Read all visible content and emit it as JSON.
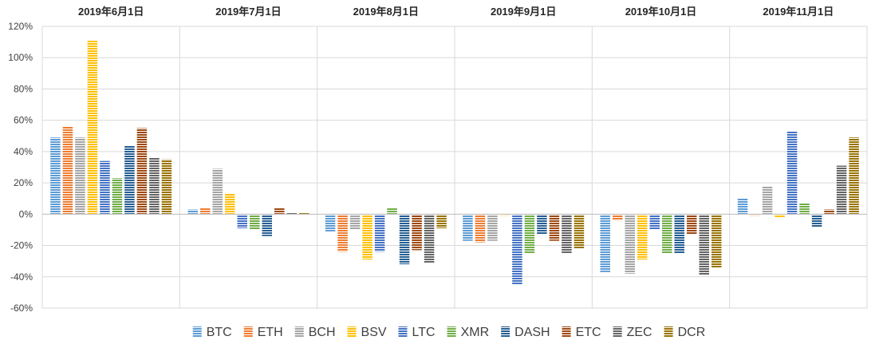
{
  "chart_data": {
    "type": "bar",
    "title": "",
    "xlabel": "",
    "ylabel": "",
    "ylim": [
      -0.6,
      1.2
    ],
    "yticks": [
      -0.6,
      -0.4,
      -0.2,
      0,
      0.2,
      0.4,
      0.6,
      0.8,
      1.0,
      1.2
    ],
    "ytick_labels": [
      "-60%",
      "-40%",
      "-20%",
      "0%",
      "20%",
      "40%",
      "60%",
      "80%",
      "100%",
      "120%"
    ],
    "categories": [
      "2019年6月1日",
      "2019年7月1日",
      "2019年8月1日",
      "2019年9月1日",
      "2019年10月1日",
      "2019年11月1日"
    ],
    "legend_position": "bottom",
    "grid": true,
    "series": [
      {
        "name": "BTC",
        "color": "#5B9BD5",
        "values": [
          0.49,
          0.03,
          -0.11,
          -0.17,
          -0.37,
          0.1
        ]
      },
      {
        "name": "ETH",
        "color": "#ED7D31",
        "values": [
          0.56,
          0.04,
          -0.24,
          -0.18,
          -0.04,
          -0.01
        ]
      },
      {
        "name": "BCH",
        "color": "#A5A5A5",
        "values": [
          0.49,
          0.29,
          -0.1,
          -0.17,
          -0.38,
          0.18
        ]
      },
      {
        "name": "BSV",
        "color": "#FFC000",
        "values": [
          1.11,
          0.13,
          -0.29,
          -0.01,
          -0.29,
          -0.02
        ]
      },
      {
        "name": "LTC",
        "color": "#4472C4",
        "values": [
          0.34,
          -0.09,
          -0.24,
          -0.45,
          -0.1,
          0.53
        ]
      },
      {
        "name": "XMR",
        "color": "#70AD47",
        "values": [
          0.23,
          -0.1,
          0.04,
          -0.25,
          -0.25,
          0.07
        ]
      },
      {
        "name": "DASH",
        "color": "#255E91",
        "values": [
          0.44,
          -0.14,
          -0.32,
          -0.13,
          -0.25,
          -0.08
        ]
      },
      {
        "name": "ETC",
        "color": "#9E480E",
        "values": [
          0.55,
          0.04,
          -0.23,
          -0.17,
          -0.13,
          0.03
        ]
      },
      {
        "name": "ZEC",
        "color": "#636363",
        "values": [
          0.36,
          0.01,
          -0.31,
          -0.25,
          -0.39,
          0.31
        ]
      },
      {
        "name": "DCR",
        "color": "#997300",
        "values": [
          0.35,
          0.01,
          -0.09,
          -0.22,
          -0.34,
          0.49
        ]
      }
    ]
  }
}
